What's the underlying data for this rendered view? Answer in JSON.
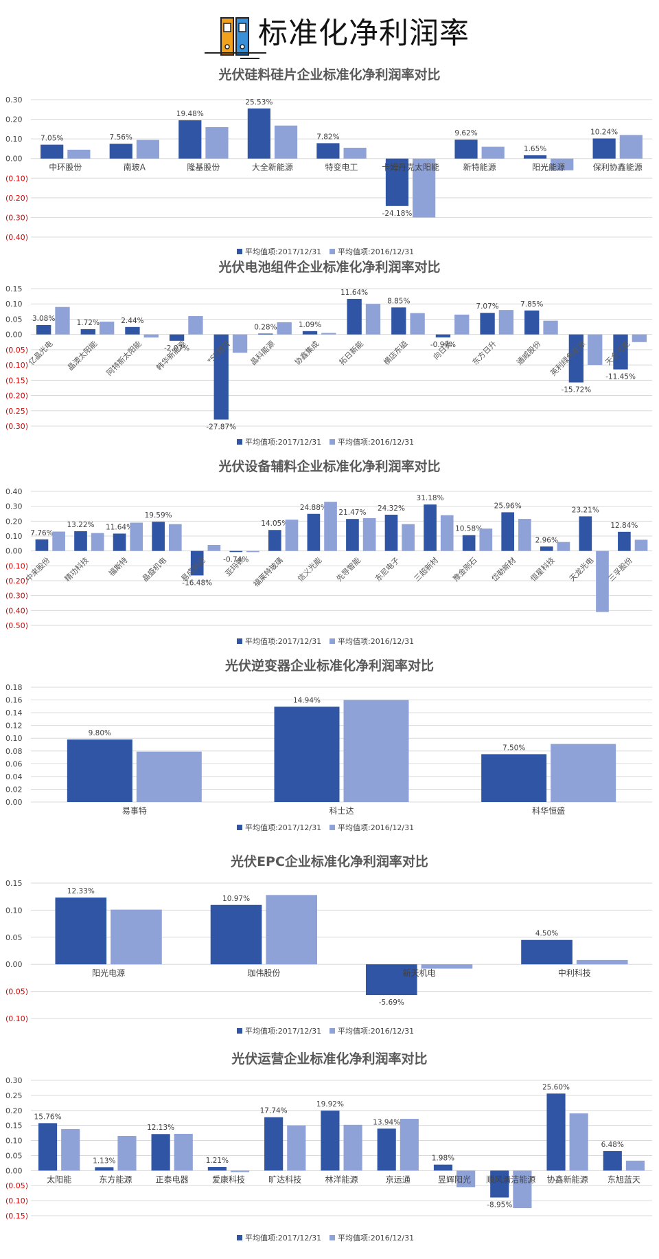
{
  "page_title": "标准化净利润率",
  "colors": {
    "series_2017": "#2f55a4",
    "series_2016": "#8fa2d8",
    "negative_tick": "#e00000",
    "grid": "#d9d9d9"
  },
  "chart_data": [
    {
      "type": "bar",
      "title": "光伏硅料硅片企业标准化净利润率对比",
      "categories": [
        "中环股份",
        "南玻A",
        "隆基股份",
        "大全新能源",
        "特变电工",
        "卡姆丹克太阳能",
        "新特能源",
        "阳光能源",
        "保利协鑫能源"
      ],
      "series": [
        {
          "name": "平均值项:2017/12/31",
          "values": [
            0.0705,
            0.0756,
            0.1948,
            0.2553,
            0.0782,
            -0.2418,
            0.0962,
            0.0165,
            0.1024
          ],
          "labels": [
            "7.05%",
            "7.56%",
            "19.48%",
            "25.53%",
            "7.82%",
            "-24.18%",
            "9.62%",
            "1.65%",
            "10.24%"
          ]
        },
        {
          "name": "平均值项:2016/12/31",
          "values": [
            0.045,
            0.095,
            0.16,
            0.168,
            0.055,
            -0.3,
            0.06,
            -0.06,
            0.12
          ]
        }
      ],
      "yticks": [
        "0.30",
        "0.20",
        "0.10",
        "0.00",
        "(0.10)",
        "(0.20)",
        "(0.30)",
        "(0.40)"
      ],
      "ylim": [
        -0.4,
        0.3
      ],
      "label_rotate": false,
      "legend": "bottom"
    },
    {
      "type": "bar",
      "title": "光伏电池组件企业标准化净利润率对比",
      "categories": [
        "亿晶光电",
        "晶澳太阳能",
        "阿特斯太阳能",
        "韩华新能源",
        "*ST超日",
        "晶科能源",
        "协鑫集成",
        "拓日新能",
        "横店东磁",
        "向日葵",
        "东方日升",
        "通威股份",
        "英利绿色能源",
        "天合光能"
      ],
      "series": [
        {
          "name": "平均值项:2017/12/31",
          "values": [
            0.0308,
            0.0172,
            0.0244,
            -0.0207,
            -0.2787,
            0.0028,
            0.0109,
            0.1164,
            0.0885,
            -0.0097,
            0.0707,
            0.0785,
            -0.1572,
            -0.1145
          ],
          "labels": [
            "3.08%",
            "1.72%",
            "2.44%",
            "-2.07%",
            "-27.87%",
            "0.28%",
            "1.09%",
            "11.64%",
            "8.85%",
            "-0.97%",
            "7.07%",
            "7.85%",
            "-15.72%",
            "-11.45%"
          ]
        },
        {
          "name": "平均值项:2016/12/31",
          "values": [
            0.09,
            0.042,
            -0.01,
            0.06,
            -0.06,
            0.04,
            0.005,
            0.1,
            0.07,
            0.065,
            0.08,
            0.045,
            -0.1,
            -0.025
          ]
        }
      ],
      "yticks": [
        "0.15",
        "0.10",
        "0.05",
        "0.00",
        "(0.05)",
        "(0.10)",
        "(0.15)",
        "(0.20)",
        "(0.25)",
        "(0.30)"
      ],
      "ylim": [
        -0.3,
        0.15
      ],
      "label_rotate": true,
      "legend": "bottom"
    },
    {
      "type": "bar",
      "title": "光伏设备辅料企业标准化净利润率对比",
      "categories": [
        "中来股份",
        "精功科技",
        "福斯特",
        "晶盛机电",
        "易成新能",
        "亚玛顿",
        "福莱特玻璃",
        "信义光能",
        "先导智能",
        "东尼电子",
        "三超新材",
        "豫金刚石",
        "岱勒新材",
        "恒星科技",
        "天龙光电",
        "三孚股份"
      ],
      "series": [
        {
          "name": "平均值项:2017/12/31",
          "values": [
            0.0776,
            0.1322,
            0.1164,
            0.1959,
            -0.1648,
            -0.0074,
            0.1405,
            0.2488,
            0.2147,
            0.2432,
            0.3118,
            0.1058,
            0.2596,
            0.0296,
            0.2321,
            0.1284
          ],
          "labels": [
            "7.76%",
            "13.22%",
            "11.64%",
            "19.59%",
            "-16.48%",
            "-0.74%",
            "14.05%",
            "24.88%",
            "21.47%",
            "24.32%",
            "31.18%",
            "10.58%",
            "25.96%",
            "2.96%",
            "23.21%",
            "12.84%"
          ]
        },
        {
          "name": "平均值项:2016/12/31",
          "values": [
            0.13,
            0.12,
            0.19,
            0.18,
            0.04,
            -0.008,
            0.21,
            0.33,
            0.22,
            0.18,
            0.24,
            0.15,
            0.215,
            0.06,
            -0.41,
            0.075
          ]
        }
      ],
      "yticks": [
        "0.40",
        "0.30",
        "0.20",
        "0.10",
        "0.00",
        "(0.10)",
        "(0.20)",
        "(0.30)",
        "(0.40)",
        "(0.50)"
      ],
      "ylim": [
        -0.5,
        0.4
      ],
      "label_rotate": true,
      "legend": "bottom"
    },
    {
      "type": "bar",
      "title": "光伏逆变器企业标准化净利润率对比",
      "categories": [
        "易事特",
        "科士达",
        "科华恒盛"
      ],
      "series": [
        {
          "name": "平均值项:2017/12/31",
          "values": [
            0.098,
            0.1494,
            0.075
          ],
          "labels": [
            "9.80%",
            "14.94%",
            "7.50%"
          ]
        },
        {
          "name": "平均值项:2016/12/31",
          "values": [
            0.079,
            0.16,
            0.091
          ]
        }
      ],
      "yticks": [
        "0.18",
        "0.16",
        "0.14",
        "0.12",
        "0.10",
        "0.08",
        "0.06",
        "0.04",
        "0.02",
        "0.00"
      ],
      "ylim": [
        0,
        0.18
      ],
      "label_rotate": false,
      "legend": "bottom"
    },
    {
      "type": "bar",
      "title": "光伏EPC企业标准化净利润率对比",
      "categories": [
        "阳光电源",
        "珈伟股份",
        "新天机电",
        "中利科技"
      ],
      "series": [
        {
          "name": "平均值项:2017/12/31",
          "values": [
            0.1233,
            0.1097,
            -0.0569,
            0.045
          ],
          "labels": [
            "12.33%",
            "10.97%",
            "-5.69%",
            "4.50%"
          ]
        },
        {
          "name": "平均值项:2016/12/31",
          "values": [
            0.101,
            0.128,
            -0.008,
            0.008
          ]
        }
      ],
      "yticks": [
        "0.15",
        "0.10",
        "0.05",
        "0.00",
        "(0.05)",
        "(0.10)"
      ],
      "ylim": [
        -0.1,
        0.15
      ],
      "label_rotate": false,
      "legend": "bottom"
    },
    {
      "type": "bar",
      "title": "光伏运营企业标准化净利润率对比",
      "categories": [
        "太阳能",
        "东方能源",
        "正泰电器",
        "爱康科技",
        "旷达科技",
        "林洋能源",
        "京运通",
        "昱辉阳光",
        "顺风清洁能源",
        "协鑫新能源",
        "东旭蓝天"
      ],
      "series": [
        {
          "name": "平均值项:2017/12/31",
          "values": [
            0.1576,
            0.0113,
            0.1213,
            0.0121,
            0.1774,
            0.1992,
            0.1394,
            0.0198,
            -0.0895,
            0.256,
            0.0648
          ],
          "labels": [
            "15.76%",
            "1.13%",
            "12.13%",
            "1.21%",
            "17.74%",
            "19.92%",
            "13.94%",
            "1.98%",
            "-8.95%",
            "25.60%",
            "6.48%"
          ]
        },
        {
          "name": "平均值项:2016/12/31",
          "values": [
            0.138,
            0.115,
            0.122,
            -0.005,
            0.15,
            0.152,
            0.172,
            -0.055,
            -0.125,
            0.19,
            0.033
          ]
        }
      ],
      "yticks": [
        "0.30",
        "0.25",
        "0.20",
        "0.15",
        "0.10",
        "0.05",
        "0.00",
        "(0.05)",
        "(0.10)",
        "(0.15)"
      ],
      "ylim": [
        -0.15,
        0.3
      ],
      "label_rotate": false,
      "legend": "bottom"
    }
  ]
}
